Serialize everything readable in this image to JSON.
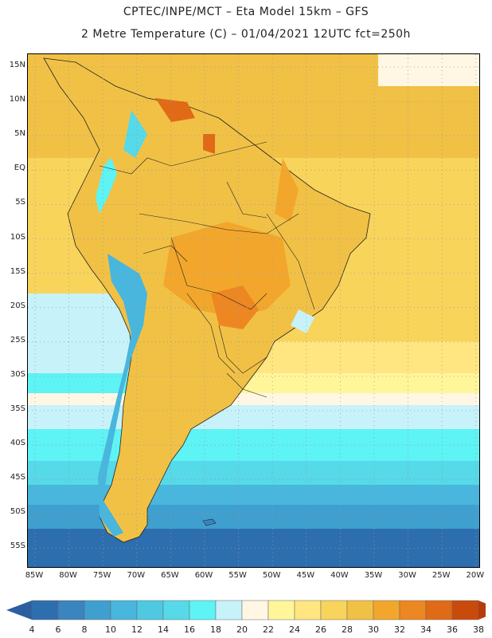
{
  "title": {
    "line1": "CPTEC/INPE/MCT –   Eta Model 15km – GFS",
    "line2": "2 Metre Temperature (C) – 01/04/2021 12UTC fct=250h"
  },
  "map": {
    "region": "South America",
    "lat_labels": [
      "15N",
      "10N",
      "5N",
      "EQ",
      "5S",
      "10S",
      "15S",
      "20S",
      "25S",
      "30S",
      "35S",
      "40S",
      "45S",
      "50S",
      "55S"
    ],
    "lon_labels": [
      "85W",
      "80W",
      "75W",
      "70W",
      "65W",
      "60W",
      "55W",
      "50W",
      "45W",
      "40W",
      "35W",
      "30W",
      "25W",
      "20W"
    ]
  },
  "colorbar": {
    "labels": [
      "4",
      "6",
      "8",
      "10",
      "12",
      "14",
      "16",
      "18",
      "20",
      "22",
      "24",
      "26",
      "28",
      "30",
      "32",
      "34",
      "36",
      "38"
    ],
    "colors": [
      "#2d6eae",
      "#3a84bf",
      "#3f9fcf",
      "#48b6dd",
      "#4fc8e2",
      "#56d9e8",
      "#5ef3f5",
      "#c8f2fa",
      "#fff7e3",
      "#fff69a",
      "#ffe680",
      "#f8d45b",
      "#f1c146",
      "#f2a72c",
      "#ed8722",
      "#e06a16",
      "#c84b0c"
    ],
    "low_color": "#2b5fa0",
    "high_color": "#b53d0c"
  }
}
